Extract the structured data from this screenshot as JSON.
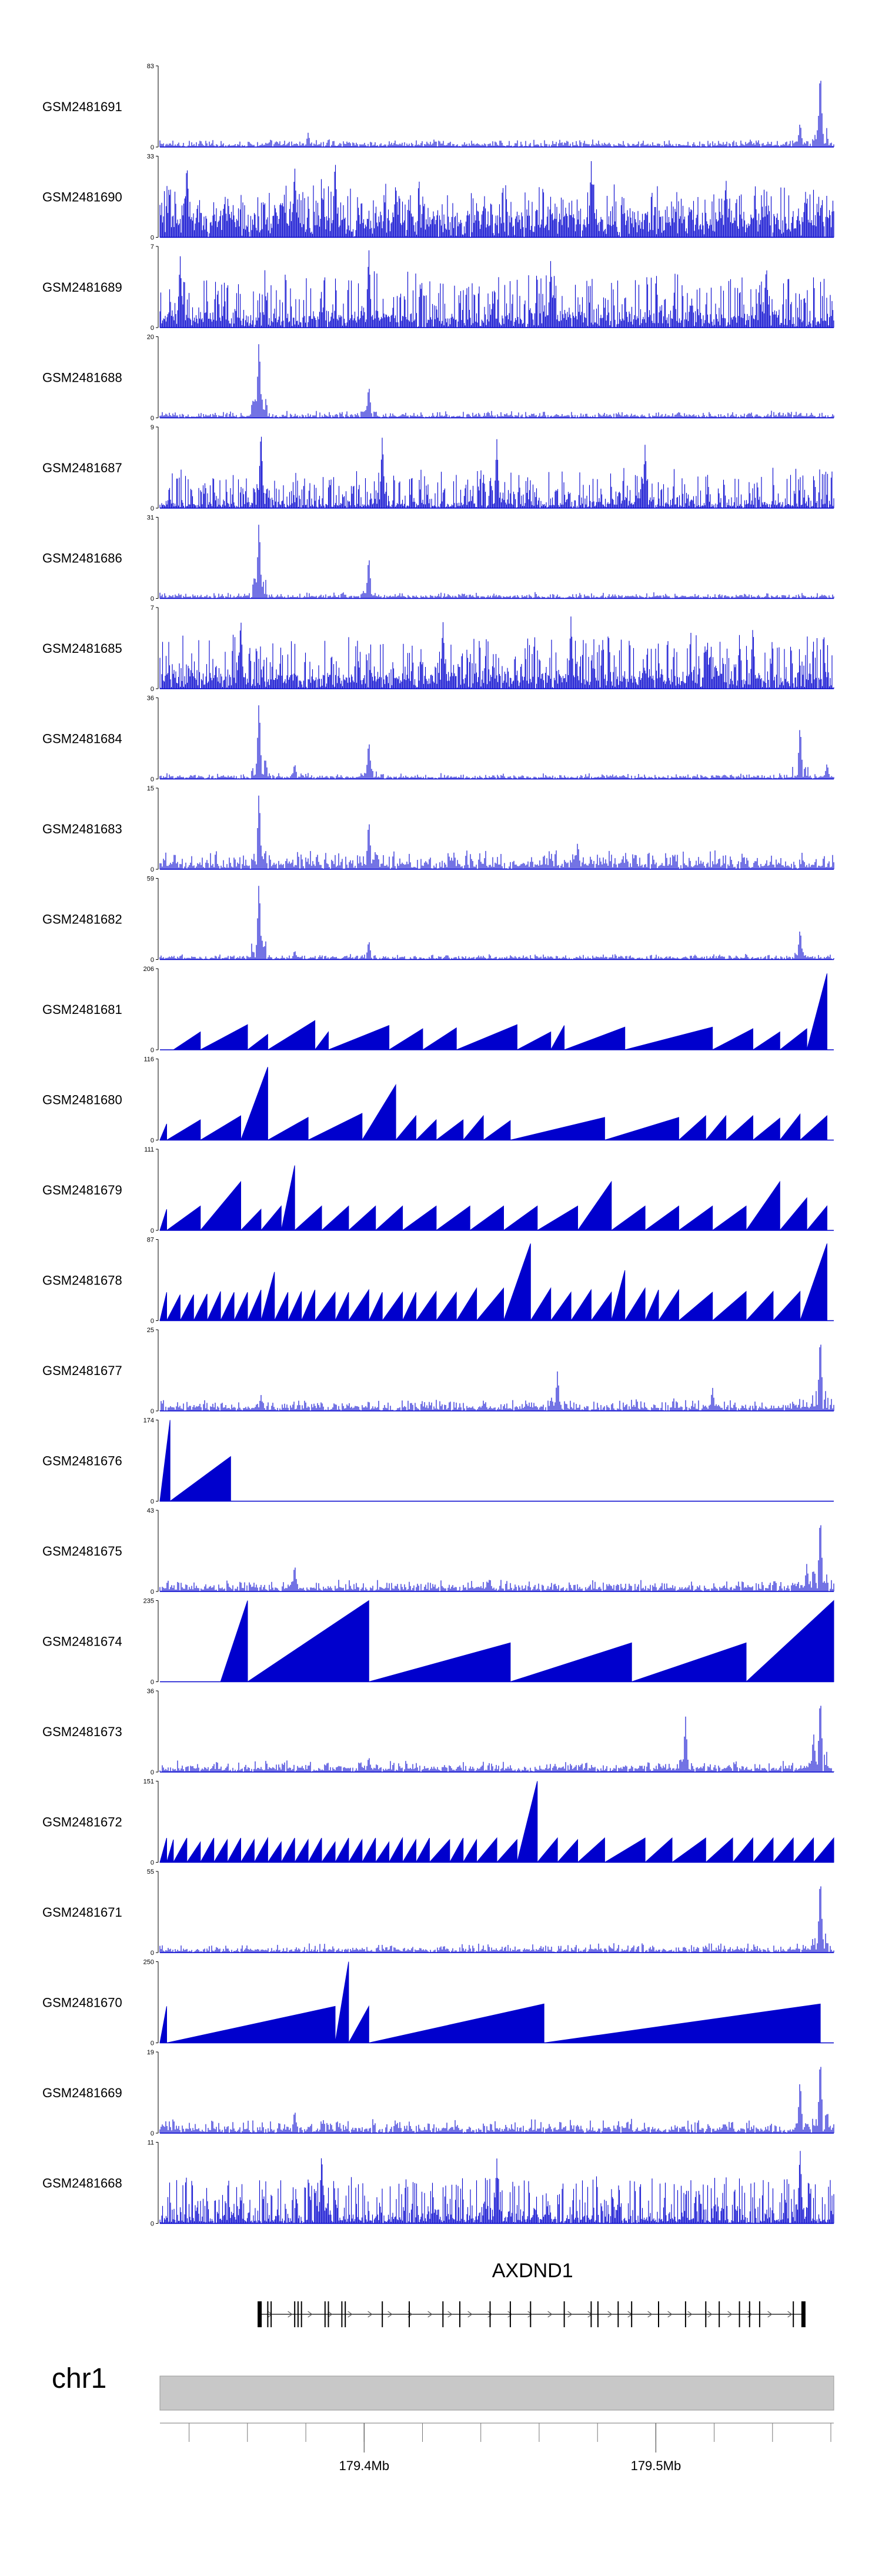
{
  "chart_data": {
    "type": "area",
    "title": "",
    "xlabel": "",
    "ylabel": "",
    "colors": {
      "signal": "#0000cd",
      "ideogram": "#c8c8c8",
      "axis": "#000000"
    },
    "x_range_mb": [
      179.33,
      179.561
    ],
    "x_ticks": [
      {
        "value": 179.4,
        "label": "179.4Mb"
      },
      {
        "value": 179.5,
        "label": "179.5Mb"
      }
    ],
    "tracks": [
      {
        "name": "GSM2481691",
        "ymax": 83,
        "ymin_label": "0",
        "ymax_label": "83",
        "style": "spiky",
        "baseline": 0.04,
        "noise": 0.06,
        "peaks": [
          [
            0.22,
            0.18
          ],
          [
            0.95,
            0.32
          ],
          [
            0.98,
            1.0
          ]
        ]
      },
      {
        "name": "GSM2481690",
        "ymax": 33,
        "ymin_label": "0",
        "ymax_label": "33",
        "style": "dense",
        "baseline": 0.28,
        "noise": 0.45,
        "peaks": [
          [
            0.04,
            0.95
          ],
          [
            0.2,
            0.9
          ],
          [
            0.26,
            1.0
          ],
          [
            0.35,
            0.7
          ],
          [
            0.64,
            0.95
          ],
          [
            0.84,
            0.75
          ]
        ]
      },
      {
        "name": "GSM2481689",
        "ymax": 7,
        "ymin_label": "0",
        "ymax_label": "7",
        "style": "dense",
        "baseline": 0.12,
        "noise": 0.6,
        "peaks": [
          [
            0.03,
            0.9
          ],
          [
            0.31,
            1.0
          ],
          [
            0.58,
            0.85
          ],
          [
            0.9,
            0.8
          ]
        ]
      },
      {
        "name": "GSM2481688",
        "ymax": 20,
        "ymin_label": "0",
        "ymax_label": "20",
        "style": "spiky",
        "baseline": 0.03,
        "noise": 0.06,
        "peaks": [
          [
            0.147,
            1.0
          ],
          [
            0.31,
            0.42
          ]
        ]
      },
      {
        "name": "GSM2481687",
        "ymax": 9,
        "ymin_label": "0",
        "ymax_label": "9",
        "style": "dense",
        "baseline": 0.05,
        "noise": 0.45,
        "peaks": [
          [
            0.15,
            1.0
          ],
          [
            0.33,
            0.9
          ],
          [
            0.5,
            0.85
          ],
          [
            0.72,
            0.8
          ]
        ]
      },
      {
        "name": "GSM2481686",
        "ymax": 31,
        "ymin_label": "0",
        "ymax_label": "31",
        "style": "spiky",
        "baseline": 0.03,
        "noise": 0.05,
        "peaks": [
          [
            0.147,
            1.0
          ],
          [
            0.31,
            0.55
          ]
        ]
      },
      {
        "name": "GSM2481685",
        "ymax": 7,
        "ymin_label": "0",
        "ymax_label": "7",
        "style": "dense",
        "baseline": 0.15,
        "noise": 0.55,
        "peaks": [
          [
            0.12,
            0.9
          ],
          [
            0.42,
            0.85
          ],
          [
            0.61,
            0.9
          ],
          [
            0.88,
            0.8
          ]
        ]
      },
      {
        "name": "GSM2481684",
        "ymax": 36,
        "ymin_label": "0",
        "ymax_label": "36",
        "style": "spiky",
        "baseline": 0.03,
        "noise": 0.05,
        "peaks": [
          [
            0.147,
            1.0
          ],
          [
            0.2,
            0.2
          ],
          [
            0.31,
            0.5
          ],
          [
            0.95,
            0.7
          ],
          [
            0.99,
            0.2
          ]
        ]
      },
      {
        "name": "GSM2481683",
        "ymax": 15,
        "ymin_label": "0",
        "ymax_label": "15",
        "style": "spiky",
        "baseline": 0.07,
        "noise": 0.18,
        "peaks": [
          [
            0.147,
            1.0
          ],
          [
            0.31,
            0.65
          ],
          [
            0.62,
            0.35
          ]
        ]
      },
      {
        "name": "GSM2481682",
        "ymax": 59,
        "ymin_label": "0",
        "ymax_label": "59",
        "style": "spiky",
        "baseline": 0.03,
        "noise": 0.04,
        "peaks": [
          [
            0.147,
            1.0
          ],
          [
            0.2,
            0.12
          ],
          [
            0.31,
            0.25
          ],
          [
            0.95,
            0.4
          ]
        ]
      },
      {
        "name": "GSM2481681",
        "ymax": 206,
        "ymin_label": "0",
        "ymax_label": "206",
        "style": "triangles",
        "tri": [
          [
            0.06,
            0.22
          ],
          [
            0.13,
            0.31
          ],
          [
            0.16,
            0.19
          ],
          [
            0.23,
            0.36
          ],
          [
            0.25,
            0.22
          ],
          [
            0.34,
            0.3
          ],
          [
            0.39,
            0.26
          ],
          [
            0.44,
            0.27
          ],
          [
            0.53,
            0.31
          ],
          [
            0.58,
            0.22
          ],
          [
            0.6,
            0.3
          ],
          [
            0.69,
            0.28
          ],
          [
            0.82,
            0.28
          ],
          [
            0.88,
            0.26
          ],
          [
            0.92,
            0.22
          ],
          [
            0.96,
            0.26
          ],
          [
            0.99,
            0.94
          ]
        ]
      },
      {
        "name": "GSM2481680",
        "ymax": 116,
        "ymin_label": "0",
        "ymax_label": "116",
        "style": "triangles",
        "tri": [
          [
            0.01,
            0.2
          ],
          [
            0.06,
            0.25
          ],
          [
            0.12,
            0.3
          ],
          [
            0.16,
            0.9
          ],
          [
            0.22,
            0.28
          ],
          [
            0.3,
            0.33
          ],
          [
            0.35,
            0.68
          ],
          [
            0.38,
            0.3
          ],
          [
            0.41,
            0.25
          ],
          [
            0.45,
            0.25
          ],
          [
            0.48,
            0.3
          ],
          [
            0.52,
            0.24
          ],
          [
            0.66,
            0.28
          ],
          [
            0.77,
            0.28
          ],
          [
            0.81,
            0.3
          ],
          [
            0.84,
            0.3
          ],
          [
            0.88,
            0.3
          ],
          [
            0.92,
            0.27
          ],
          [
            0.95,
            0.32
          ],
          [
            0.99,
            0.3
          ]
        ]
      },
      {
        "name": "GSM2481679",
        "ymax": 111,
        "ymin_label": "0",
        "ymax_label": "111",
        "style": "triangles",
        "tri": [
          [
            0.01,
            0.26
          ],
          [
            0.06,
            0.3
          ],
          [
            0.12,
            0.6
          ],
          [
            0.15,
            0.26
          ],
          [
            0.18,
            0.3
          ],
          [
            0.2,
            0.8
          ],
          [
            0.24,
            0.3
          ],
          [
            0.28,
            0.3
          ],
          [
            0.32,
            0.3
          ],
          [
            0.36,
            0.3
          ],
          [
            0.41,
            0.3
          ],
          [
            0.46,
            0.3
          ],
          [
            0.51,
            0.3
          ],
          [
            0.56,
            0.3
          ],
          [
            0.62,
            0.3
          ],
          [
            0.67,
            0.6
          ],
          [
            0.72,
            0.3
          ],
          [
            0.77,
            0.3
          ],
          [
            0.82,
            0.3
          ],
          [
            0.87,
            0.3
          ],
          [
            0.92,
            0.6
          ],
          [
            0.96,
            0.4
          ],
          [
            0.99,
            0.3
          ]
        ]
      },
      {
        "name": "GSM2481678",
        "ymax": 87,
        "ymin_label": "0",
        "ymax_label": "87",
        "style": "triangles",
        "tri": [
          [
            0.01,
            0.35
          ],
          [
            0.03,
            0.32
          ],
          [
            0.05,
            0.32
          ],
          [
            0.07,
            0.33
          ],
          [
            0.09,
            0.36
          ],
          [
            0.11,
            0.35
          ],
          [
            0.13,
            0.35
          ],
          [
            0.15,
            0.38
          ],
          [
            0.17,
            0.6
          ],
          [
            0.19,
            0.35
          ],
          [
            0.21,
            0.36
          ],
          [
            0.23,
            0.38
          ],
          [
            0.26,
            0.35
          ],
          [
            0.28,
            0.35
          ],
          [
            0.31,
            0.38
          ],
          [
            0.33,
            0.35
          ],
          [
            0.36,
            0.35
          ],
          [
            0.38,
            0.35
          ],
          [
            0.41,
            0.36
          ],
          [
            0.44,
            0.35
          ],
          [
            0.47,
            0.4
          ],
          [
            0.51,
            0.4
          ],
          [
            0.55,
            0.95
          ],
          [
            0.58,
            0.4
          ],
          [
            0.61,
            0.35
          ],
          [
            0.64,
            0.38
          ],
          [
            0.67,
            0.35
          ],
          [
            0.69,
            0.62
          ],
          [
            0.72,
            0.4
          ],
          [
            0.74,
            0.38
          ],
          [
            0.77,
            0.38
          ],
          [
            0.82,
            0.35
          ],
          [
            0.87,
            0.36
          ],
          [
            0.91,
            0.36
          ],
          [
            0.95,
            0.36
          ],
          [
            0.99,
            0.95
          ]
        ]
      },
      {
        "name": "GSM2481677",
        "ymax": 25,
        "ymin_label": "0",
        "ymax_label": "25",
        "style": "spiky",
        "baseline": 0.05,
        "noise": 0.12,
        "peaks": [
          [
            0.15,
            0.2
          ],
          [
            0.59,
            0.5
          ],
          [
            0.82,
            0.3
          ],
          [
            0.98,
            1.0
          ]
        ]
      },
      {
        "name": "GSM2481676",
        "ymax": 174,
        "ymin_label": "0",
        "ymax_label": "174",
        "style": "triangles",
        "tri": [
          [
            0.015,
            1.0
          ],
          [
            0.105,
            0.55
          ]
        ]
      },
      {
        "name": "GSM2481675",
        "ymax": 43,
        "ymin_label": "0",
        "ymax_label": "43",
        "style": "spiky",
        "baseline": 0.05,
        "noise": 0.1,
        "peaks": [
          [
            0.2,
            0.35
          ],
          [
            0.96,
            0.35
          ],
          [
            0.98,
            1.0
          ]
        ]
      },
      {
        "name": "GSM2481674",
        "ymax": 235,
        "ymin_label": "0",
        "ymax_label": "235",
        "style": "triangles",
        "tri": [
          [
            0.13,
            1.0
          ],
          [
            0.31,
            1.0
          ],
          [
            0.52,
            0.48
          ],
          [
            0.7,
            0.48
          ],
          [
            0.87,
            0.48
          ],
          [
            1.0,
            1.0
          ]
        ]
      },
      {
        "name": "GSM2481673",
        "ymax": 36,
        "ymin_label": "0",
        "ymax_label": "36",
        "style": "spiky",
        "baseline": 0.05,
        "noise": 0.1,
        "peaks": [
          [
            0.31,
            0.2
          ],
          [
            0.78,
            0.7
          ],
          [
            0.97,
            0.5
          ],
          [
            0.98,
            1.0
          ]
        ]
      },
      {
        "name": "GSM2481672",
        "ymax": 151,
        "ymin_label": "0",
        "ymax_label": "151",
        "style": "triangles",
        "tri": [
          [
            0.01,
            0.3
          ],
          [
            0.02,
            0.28
          ],
          [
            0.04,
            0.3
          ],
          [
            0.06,
            0.25
          ],
          [
            0.08,
            0.3
          ],
          [
            0.1,
            0.28
          ],
          [
            0.12,
            0.3
          ],
          [
            0.14,
            0.28
          ],
          [
            0.16,
            0.3
          ],
          [
            0.18,
            0.25
          ],
          [
            0.2,
            0.3
          ],
          [
            0.22,
            0.28
          ],
          [
            0.24,
            0.3
          ],
          [
            0.26,
            0.25
          ],
          [
            0.28,
            0.3
          ],
          [
            0.3,
            0.28
          ],
          [
            0.32,
            0.3
          ],
          [
            0.34,
            0.25
          ],
          [
            0.36,
            0.3
          ],
          [
            0.38,
            0.28
          ],
          [
            0.4,
            0.3
          ],
          [
            0.43,
            0.28
          ],
          [
            0.45,
            0.3
          ],
          [
            0.47,
            0.28
          ],
          [
            0.5,
            0.3
          ],
          [
            0.53,
            0.28
          ],
          [
            0.56,
            1.0
          ],
          [
            0.59,
            0.3
          ],
          [
            0.62,
            0.28
          ],
          [
            0.66,
            0.3
          ],
          [
            0.72,
            0.3
          ],
          [
            0.76,
            0.3
          ],
          [
            0.81,
            0.3
          ],
          [
            0.85,
            0.3
          ],
          [
            0.88,
            0.3
          ],
          [
            0.91,
            0.3
          ],
          [
            0.94,
            0.3
          ],
          [
            0.97,
            0.3
          ],
          [
            1.0,
            0.3
          ]
        ]
      },
      {
        "name": "GSM2481671",
        "ymax": 55,
        "ymin_label": "0",
        "ymax_label": "55",
        "style": "spiky",
        "baseline": 0.04,
        "noise": 0.08,
        "peaks": [
          [
            0.98,
            1.0
          ]
        ]
      },
      {
        "name": "GSM2481670",
        "ymax": 250,
        "ymin_label": "0",
        "ymax_label": "250",
        "style": "triangles",
        "tri": [
          [
            0.01,
            0.45
          ],
          [
            0.26,
            0.45
          ],
          [
            0.28,
            1.0
          ],
          [
            0.31,
            0.45
          ],
          [
            0.57,
            0.48
          ],
          [
            0.98,
            0.48
          ]
        ]
      },
      {
        "name": "GSM2481669",
        "ymax": 19,
        "ymin_label": "0",
        "ymax_label": "19",
        "style": "spiky",
        "baseline": 0.06,
        "noise": 0.12,
        "peaks": [
          [
            0.2,
            0.3
          ],
          [
            0.95,
            0.7
          ],
          [
            0.98,
            1.0
          ]
        ]
      },
      {
        "name": "GSM2481668",
        "ymax": 11,
        "ymin_label": "0",
        "ymax_label": "11",
        "style": "dense",
        "baseline": 0.05,
        "noise": 0.55,
        "peaks": [
          [
            0.24,
            0.9
          ],
          [
            0.5,
            0.8
          ],
          [
            0.95,
            0.95
          ]
        ]
      }
    ],
    "gene": {
      "name": "AXDND1",
      "start_frac": 0.148,
      "end_frac": 0.958,
      "strand": "+",
      "exons_frac": [
        0.148,
        0.16,
        0.165,
        0.2,
        0.205,
        0.21,
        0.245,
        0.25,
        0.27,
        0.275,
        0.33,
        0.37,
        0.42,
        0.445,
        0.49,
        0.52,
        0.55,
        0.6,
        0.64,
        0.65,
        0.68,
        0.7,
        0.74,
        0.78,
        0.81,
        0.83,
        0.86,
        0.875,
        0.89,
        0.94,
        0.955
      ]
    },
    "chromosome": {
      "label": "chr1"
    }
  }
}
